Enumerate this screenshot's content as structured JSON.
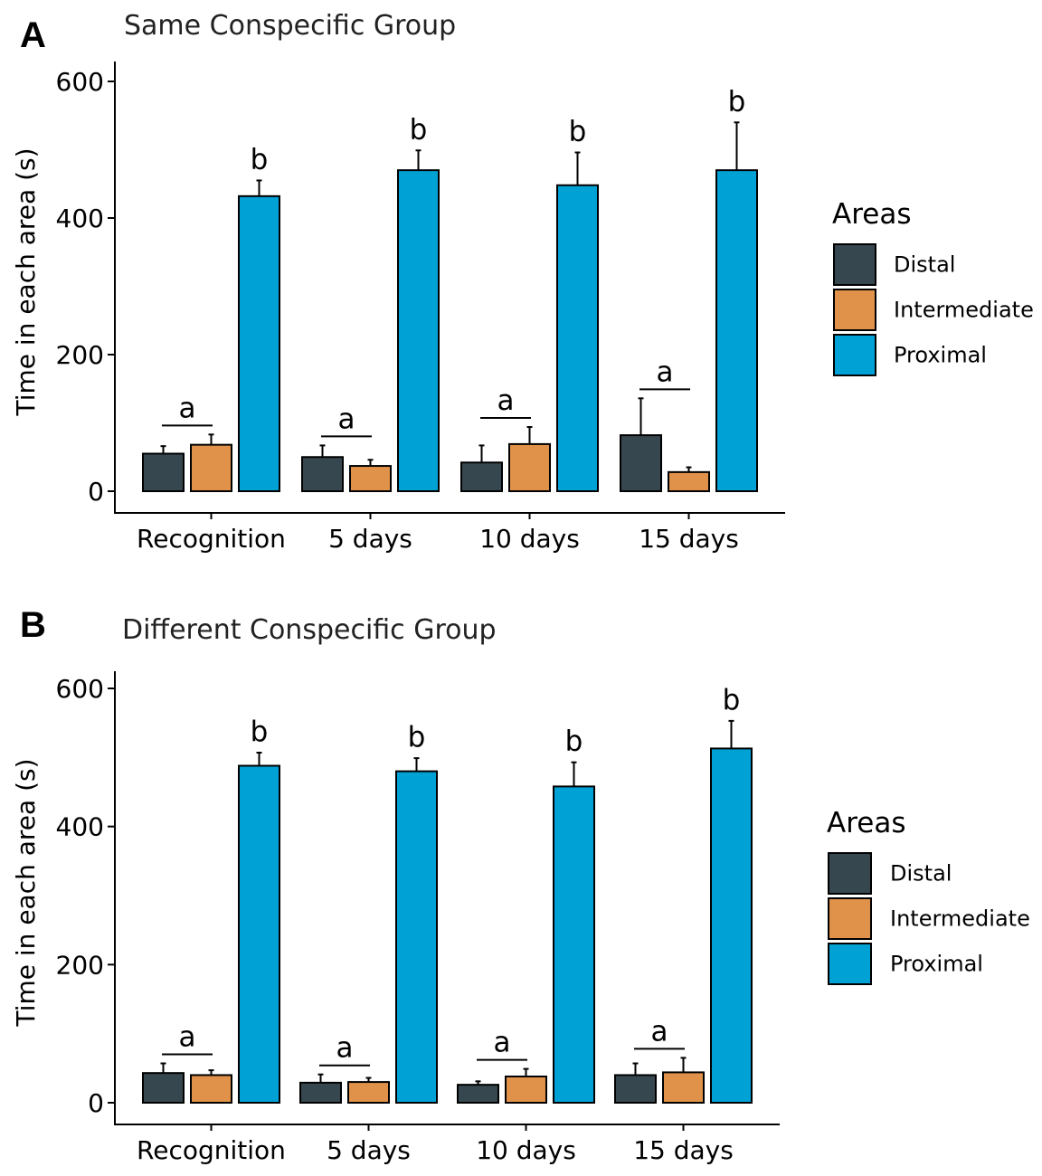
{
  "legend": {
    "title": "Areas",
    "items": [
      "Distal",
      "Intermediate",
      "Proximal"
    ]
  },
  "colors": {
    "Distal": "#37474f",
    "Intermediate": "#e0924a",
    "Proximal": "#00a2d6"
  },
  "chart_data": [
    {
      "type": "bar",
      "panel": "A",
      "title": "Same Conspecific Group",
      "xlabel": "",
      "ylabel": "Time in each area (s)",
      "ylim": [
        0,
        600
      ],
      "yticks": [
        0,
        200,
        400,
        600
      ],
      "categories": [
        "Recognition",
        "5 days",
        "10 days",
        "15 days"
      ],
      "series": [
        {
          "name": "Distal",
          "values": [
            55,
            50,
            42,
            82
          ],
          "errors": [
            11,
            17,
            25,
            54
          ]
        },
        {
          "name": "Intermediate",
          "values": [
            68,
            37,
            69,
            28
          ],
          "errors": [
            15,
            9,
            25,
            7
          ]
        },
        {
          "name": "Proximal",
          "values": [
            432,
            470,
            448,
            470
          ],
          "errors": [
            23,
            29,
            48,
            70
          ]
        }
      ],
      "significance": [
        {
          "label": "a",
          "group": "distal-intermediate"
        },
        {
          "label": "b",
          "group": "proximal"
        }
      ]
    },
    {
      "type": "bar",
      "panel": "B",
      "title": "Different Conspecific Group",
      "xlabel": "",
      "ylabel": "Time in each area (s)",
      "ylim": [
        0,
        600
      ],
      "yticks": [
        0,
        200,
        400,
        600
      ],
      "categories": [
        "Recognition",
        "5 days",
        "10 days",
        "15 days"
      ],
      "series": [
        {
          "name": "Distal",
          "values": [
            43,
            29,
            26,
            40
          ],
          "errors": [
            14,
            12,
            5,
            17
          ]
        },
        {
          "name": "Intermediate",
          "values": [
            40,
            30,
            38,
            44
          ],
          "errors": [
            7,
            6,
            11,
            21
          ]
        },
        {
          "name": "Proximal",
          "values": [
            488,
            480,
            458,
            513
          ],
          "errors": [
            19,
            19,
            35,
            40
          ]
        }
      ],
      "significance": [
        {
          "label": "a",
          "group": "distal-intermediate"
        },
        {
          "label": "b",
          "group": "proximal"
        }
      ]
    }
  ]
}
